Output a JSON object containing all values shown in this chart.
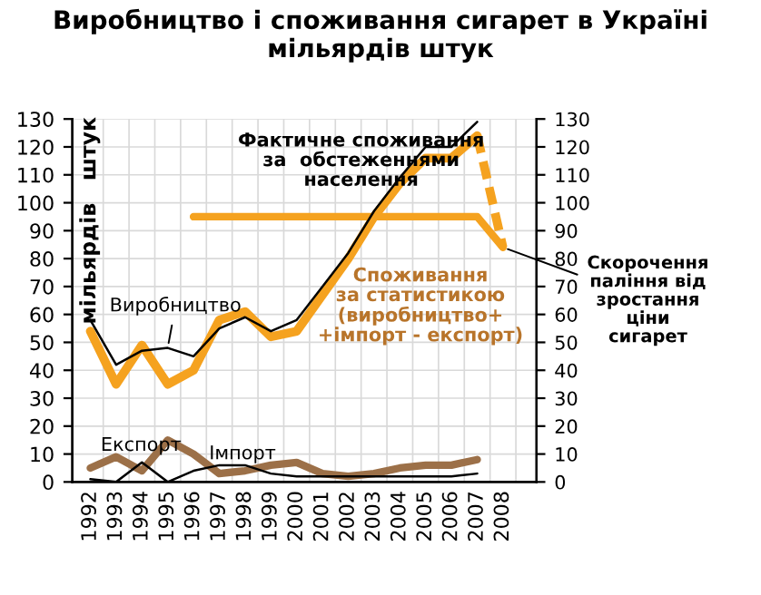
{
  "chart_data": {
    "type": "line",
    "title": "Виробництво і споживання сигарет в Україні\nмільярдів штук",
    "ylabel": "мільярдів   штук",
    "categories": [
      "1992",
      "1993",
      "1994",
      "1995",
      "1996",
      "1997",
      "1998",
      "1999",
      "2000",
      "2001",
      "2002",
      "2003",
      "2004",
      "2005",
      "2006",
      "2007",
      "2008",
      null
    ],
    "series": [
      {
        "color": "#000000",
        "values": [
          58,
          42,
          47,
          48,
          45,
          55,
          59,
          54,
          58,
          70,
          82,
          97,
          109,
          120,
          120,
          129,
          null,
          null
        ]
      },
      {
        "color": "#f5a21f",
        "values": [
          54,
          35,
          49,
          35,
          40,
          58,
          61,
          52,
          54,
          67,
          80,
          95,
          107,
          116,
          116,
          124,
          null,
          null
        ]
      },
      {
        "color": "#f5a21f",
        "line_style": "dashed",
        "values": [
          null,
          null,
          null,
          null,
          null,
          null,
          null,
          null,
          null,
          null,
          null,
          null,
          null,
          null,
          null,
          124,
          84,
          null
        ]
      },
      {
        "color": "#f5a21f",
        "values": [
          null,
          null,
          null,
          null,
          95,
          95,
          95,
          95,
          95,
          95,
          95,
          95,
          95,
          95,
          95,
          95,
          84,
          null
        ]
      },
      {
        "color": "#9c7048",
        "values": [
          5,
          9,
          4,
          15,
          10,
          3,
          4,
          6,
          7,
          3,
          2,
          3,
          5,
          6,
          6,
          8,
          null,
          null
        ]
      },
      {
        "color": "#000000",
        "values": [
          1,
          0,
          7,
          0,
          4,
          6,
          6,
          3,
          2,
          2,
          2,
          2,
          2,
          2,
          2,
          3,
          null,
          null
        ]
      }
    ],
    "ylim": [
      0,
      130
    ],
    "yticks": [
      0,
      10,
      20,
      30,
      40,
      50,
      60,
      70,
      80,
      90,
      100,
      110,
      120,
      130
    ],
    "y2lim": [
      0,
      130
    ],
    "y2ticks": [
      0,
      10,
      20,
      30,
      40,
      50,
      60,
      70,
      80,
      90,
      100,
      110,
      120,
      130
    ],
    "grid": true,
    "line_style": "solid",
    "annotations": [
      {
        "text": "Фактичне споживання\nза  обстеженнями\nнаселення",
        "x": "2000",
        "y": 95
      },
      {
        "text": "Споживання\nза статистикою\n(виробництво+\n+імпорт - експорт)",
        "x": "2003",
        "y": 95
      },
      {
        "text": "Виробництво",
        "x": "1995",
        "y": 48
      },
      {
        "text": "Експорт",
        "x": "1994",
        "y": 4
      },
      {
        "text": "Імпорт",
        "x": "1997",
        "y": 6
      },
      {
        "text": "Скорочення\nпаління від\nзростання\nціни\nсигарет",
        "x": "2008",
        "y": 84
      }
    ]
  }
}
